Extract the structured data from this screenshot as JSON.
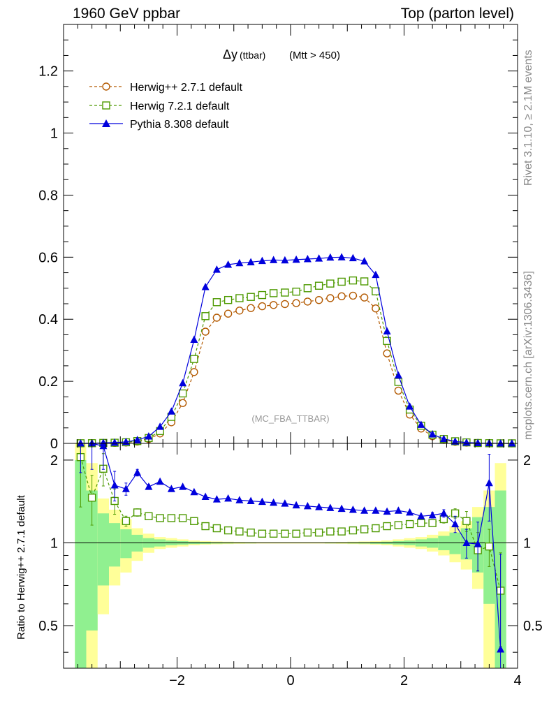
{
  "header": {
    "left": "1960 GeV ppbar",
    "right": "Top (parton level)"
  },
  "side_text": {
    "rivet": "Rivet 3.1.10, ≥ 2.1M events",
    "source": "mcplots.cern.ch [arXiv:1306.3436]"
  },
  "colors": {
    "herwigpp": "#b35900",
    "herwig7": "#4d9900",
    "pythia": "#0000dd",
    "band_inner": "#90f090",
    "band_outer": "#ffff99"
  },
  "chart_data": [
    {
      "type": "line",
      "title_main": "Δy",
      "title_sub": "(ttbar)",
      "title_cut": "(Mtt > 450)",
      "watermark": "(MC_FBA_TTBAR)",
      "ylim": [
        0,
        1.35
      ],
      "xlim": [
        -4,
        4
      ],
      "y_ticks": [
        "0",
        "0.2",
        "0.4",
        "0.6",
        "0.8",
        "1",
        "1.2"
      ],
      "y_tick_values": [
        0,
        0.2,
        0.4,
        0.6,
        0.8,
        1.0,
        1.2
      ],
      "legend_placement": "top-left",
      "x": [
        -3.7,
        -3.5,
        -3.3,
        -3.1,
        -2.9,
        -2.7,
        -2.5,
        -2.3,
        -2.1,
        -1.9,
        -1.7,
        -1.5,
        -1.3,
        -1.1,
        -0.9,
        -0.7,
        -0.5,
        -0.3,
        -0.1,
        0.1,
        0.3,
        0.5,
        0.7,
        0.9,
        1.1,
        1.3,
        1.5,
        1.7,
        1.9,
        2.1,
        2.3,
        2.5,
        2.7,
        2.9,
        3.1,
        3.3,
        3.5,
        3.7,
        3.9
      ],
      "series": [
        {
          "name": "Herwig++ 2.7.1 default",
          "marker": "circle",
          "dashed": true,
          "values": [
            0.0002,
            0.0004,
            0.0008,
            0.0015,
            0.003,
            0.006,
            0.014,
            0.032,
            0.068,
            0.13,
            0.23,
            0.36,
            0.405,
            0.418,
            0.428,
            0.436,
            0.442,
            0.446,
            0.449,
            0.452,
            0.457,
            0.462,
            0.468,
            0.474,
            0.476,
            0.47,
            0.435,
            0.29,
            0.17,
            0.093,
            0.048,
            0.023,
            0.011,
            0.005,
            0.0025,
            0.0012,
            0.0005,
            0.0002,
            0.0001
          ]
        },
        {
          "name": "Herwig 7.2.1 default",
          "marker": "square",
          "dashed": true,
          "values": [
            0.0004,
            0.0006,
            0.0015,
            0.0021,
            0.0036,
            0.0074,
            0.0172,
            0.0397,
            0.0853,
            0.161,
            0.272,
            0.41,
            0.455,
            0.462,
            0.468,
            0.472,
            0.478,
            0.484,
            0.486,
            0.489,
            0.5,
            0.508,
            0.515,
            0.521,
            0.525,
            0.522,
            0.49,
            0.33,
            0.198,
            0.109,
            0.057,
            0.028,
            0.014,
            0.0068,
            0.0032,
            0.0011,
            0.0005,
            0.0001,
            0.0001
          ]
        },
        {
          "name": "Pythia 8.308 default",
          "marker": "triangle",
          "dashed": false,
          "values": [
            0.0003,
            0.0005,
            0.0018,
            0.0024,
            0.0047,
            0.011,
            0.0224,
            0.0536,
            0.103,
            0.194,
            0.334,
            0.504,
            0.56,
            0.576,
            0.581,
            0.584,
            0.588,
            0.591,
            0.59,
            0.592,
            0.594,
            0.596,
            0.599,
            0.6,
            0.597,
            0.587,
            0.543,
            0.361,
            0.219,
            0.119,
            0.06,
            0.0293,
            0.0143,
            0.0063,
            0.0025,
            0.0012,
            0.0008,
            0.0001,
            0.0001
          ]
        }
      ]
    },
    {
      "type": "line",
      "ylabel": "Ratio to Herwig++ 2.7.1 default",
      "ylim": [
        0.35,
        2.3
      ],
      "log_y": true,
      "xlim": [
        -4,
        4
      ],
      "y_ticks": [
        "0.5",
        "1",
        "2"
      ],
      "y_tick_values": [
        0.5,
        1,
        2
      ],
      "x_ticks": [
        "−2",
        "0",
        "2",
        "4"
      ],
      "x_tick_values": [
        -2,
        0,
        2,
        4
      ],
      "reference_line": 1,
      "x": [
        -3.7,
        -3.5,
        -3.3,
        -3.1,
        -2.9,
        -2.7,
        -2.5,
        -2.3,
        -2.1,
        -1.9,
        -1.7,
        -1.5,
        -1.3,
        -1.1,
        -0.9,
        -0.7,
        -0.5,
        -0.3,
        -0.1,
        0.1,
        0.3,
        0.5,
        0.7,
        0.9,
        1.1,
        1.3,
        1.5,
        1.7,
        1.9,
        2.1,
        2.3,
        2.5,
        2.7,
        2.9,
        3.1,
        3.3,
        3.5,
        3.7
      ],
      "series": [
        {
          "name": "Herwig 7.2.1 default",
          "marker": "square",
          "dashed": true,
          "values": [
            2.05,
            1.46,
            1.86,
            1.42,
            1.2,
            1.29,
            1.25,
            1.23,
            1.23,
            1.23,
            1.2,
            1.15,
            1.13,
            1.11,
            1.1,
            1.09,
            1.08,
            1.08,
            1.08,
            1.08,
            1.09,
            1.09,
            1.1,
            1.1,
            1.11,
            1.12,
            1.13,
            1.15,
            1.16,
            1.17,
            1.18,
            1.18,
            1.22,
            1.28,
            1.2,
            0.94,
            0.97,
            0.67
          ],
          "errors": [
            0.7,
            0.3,
            0.25,
            0.15,
            0.05,
            0.04,
            0.02,
            0.01,
            0.01,
            0.01,
            0.01,
            0.01,
            0.01,
            0.01,
            0.01,
            0.01,
            0.01,
            0.01,
            0.01,
            0.01,
            0.01,
            0.01,
            0.01,
            0.01,
            0.01,
            0.01,
            0.01,
            0.01,
            0.01,
            0.01,
            0.01,
            0.02,
            0.04,
            0.05,
            0.1,
            0.15,
            0.15,
            0.25
          ]
        },
        {
          "name": "Pythia 8.308 default",
          "marker": "triangle",
          "dashed": false,
          "values": [
            2.6,
            2.35,
            2.25,
            1.62,
            1.57,
            1.8,
            1.6,
            1.67,
            1.57,
            1.6,
            1.53,
            1.47,
            1.44,
            1.45,
            1.43,
            1.42,
            1.41,
            1.4,
            1.39,
            1.37,
            1.36,
            1.35,
            1.34,
            1.33,
            1.32,
            1.31,
            1.31,
            1.3,
            1.31,
            1.29,
            1.25,
            1.26,
            1.28,
            1.17,
            1.0,
            0.99,
            1.65,
            0.41
          ],
          "errors": [
            0.8,
            0.5,
            0.4,
            0.2,
            0.08,
            0.05,
            0.03,
            0.02,
            0.02,
            0.01,
            0.01,
            0.01,
            0.01,
            0.01,
            0.01,
            0.01,
            0.01,
            0.01,
            0.01,
            0.01,
            0.01,
            0.01,
            0.01,
            0.01,
            0.01,
            0.01,
            0.01,
            0.01,
            0.01,
            0.01,
            0.02,
            0.03,
            0.04,
            0.08,
            0.12,
            0.2,
            0.45,
            0.5
          ]
        }
      ],
      "band_inner": [
        [
          0.33,
          2.0
        ],
        [
          0.48,
          1.55
        ],
        [
          0.7,
          1.28
        ],
        [
          0.82,
          1.18
        ],
        [
          0.88,
          1.12
        ],
        [
          0.93,
          1.07
        ],
        [
          0.96,
          1.04
        ],
        [
          0.97,
          1.03
        ],
        [
          0.98,
          1.02
        ],
        [
          0.985,
          1.015
        ],
        [
          0.99,
          1.01
        ],
        [
          0.992,
          1.008
        ],
        [
          0.994,
          1.006
        ],
        [
          0.995,
          1.005
        ],
        [
          0.996,
          1.004
        ],
        [
          0.996,
          1.004
        ],
        [
          0.997,
          1.003
        ],
        [
          0.997,
          1.003
        ],
        [
          0.997,
          1.003
        ],
        [
          0.997,
          1.003
        ],
        [
          0.997,
          1.003
        ],
        [
          0.997,
          1.003
        ],
        [
          0.996,
          1.004
        ],
        [
          0.996,
          1.004
        ],
        [
          0.995,
          1.005
        ],
        [
          0.994,
          1.006
        ],
        [
          0.992,
          1.008
        ],
        [
          0.99,
          1.01
        ],
        [
          0.985,
          1.015
        ],
        [
          0.98,
          1.02
        ],
        [
          0.97,
          1.03
        ],
        [
          0.96,
          1.04
        ],
        [
          0.94,
          1.06
        ],
        [
          0.91,
          1.09
        ],
        [
          0.87,
          1.13
        ],
        [
          0.78,
          1.24
        ],
        [
          0.6,
          1.35
        ],
        [
          0.35,
          1.55
        ]
      ],
      "band_outer": [
        [
          0.3,
          2.3
        ],
        [
          0.33,
          1.95
        ],
        [
          0.55,
          1.45
        ],
        [
          0.7,
          1.32
        ],
        [
          0.78,
          1.22
        ],
        [
          0.86,
          1.13
        ],
        [
          0.92,
          1.08
        ],
        [
          0.95,
          1.05
        ],
        [
          0.96,
          1.04
        ],
        [
          0.97,
          1.03
        ],
        [
          0.98,
          1.02
        ],
        [
          0.985,
          1.015
        ],
        [
          0.988,
          1.012
        ],
        [
          0.99,
          1.01
        ],
        [
          0.992,
          1.008
        ],
        [
          0.993,
          1.007
        ],
        [
          0.994,
          1.006
        ],
        [
          0.994,
          1.006
        ],
        [
          0.994,
          1.006
        ],
        [
          0.994,
          1.006
        ],
        [
          0.994,
          1.006
        ],
        [
          0.994,
          1.006
        ],
        [
          0.993,
          1.007
        ],
        [
          0.992,
          1.008
        ],
        [
          0.99,
          1.01
        ],
        [
          0.988,
          1.012
        ],
        [
          0.985,
          1.015
        ],
        [
          0.98,
          1.02
        ],
        [
          0.97,
          1.03
        ],
        [
          0.96,
          1.04
        ],
        [
          0.95,
          1.05
        ],
        [
          0.93,
          1.07
        ],
        [
          0.9,
          1.1
        ],
        [
          0.85,
          1.15
        ],
        [
          0.8,
          1.2
        ],
        [
          0.68,
          1.35
        ],
        [
          0.35,
          1.55
        ],
        [
          0.3,
          1.95
        ]
      ]
    }
  ]
}
